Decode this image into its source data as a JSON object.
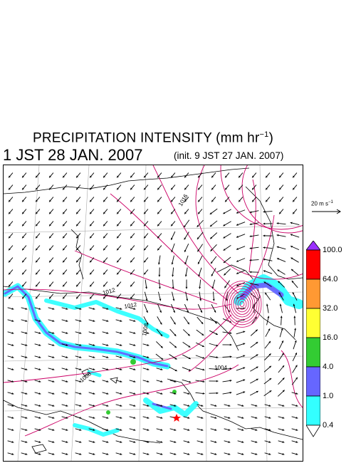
{
  "title": {
    "main": "PRECIPITATION INTENSITY (mm hr",
    "unit_exp": "−1",
    "close": ")"
  },
  "valid_time": "1 JST 28 JAN. 2007",
  "init_time": "(init. 9 JST 27 JAN. 2007)",
  "vector_reference": {
    "label": "20 m s",
    "exp": "−1"
  },
  "isobar_labels": [
    "1016",
    "1012",
    "1012",
    "1008",
    "1004",
    "1008"
  ],
  "colorbar": {
    "levels": [
      "100.0",
      "64.0",
      "32.0",
      "16.0",
      "4.0",
      "1.0",
      "0.4"
    ],
    "colors": [
      "#9b30ff",
      "#ff0000",
      "#ff9933",
      "#ffff33",
      "#33cc33",
      "#6666ff",
      "#33ffff",
      "#ffffff"
    ]
  },
  "colors": {
    "isobar": "#cc0066",
    "coastline": "#000000",
    "gridline": "#aaaaaa",
    "wind_arrow": "#000000",
    "marker": "#ff0000"
  },
  "marker_icon": "red-star-icon"
}
